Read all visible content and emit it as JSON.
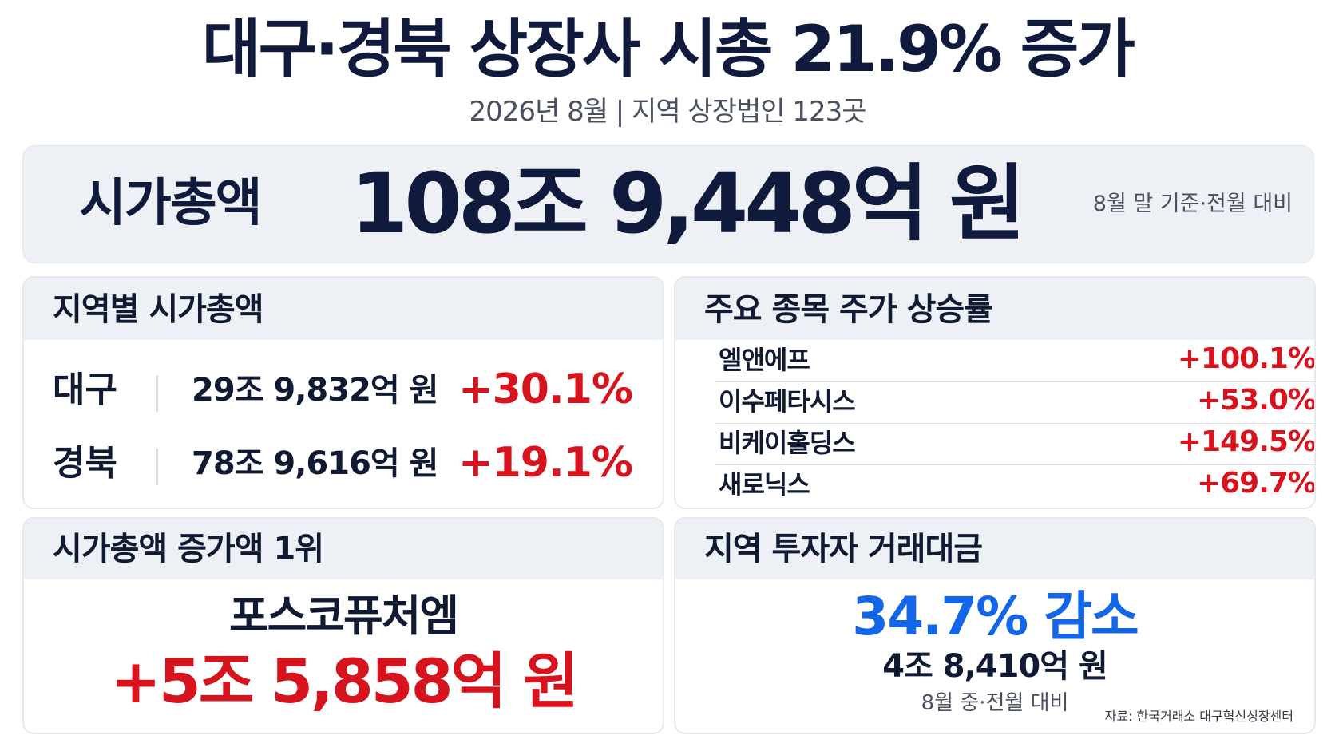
{
  "title": "대구·경북 상장사 시총 21.9% 증가",
  "subtitle": "2026년 8월  |  지역 상장법인 123곳",
  "hero": {
    "label": "시가총액",
    "value": "108조 9,448억 원",
    "note": "8월 말 기준·전월 대비"
  },
  "regions": {
    "header": "지역별 시가총액",
    "rows": [
      {
        "name": "대구",
        "value": "29조 9,832억 원",
        "change": "+30.1%"
      },
      {
        "name": "경북",
        "value": "78조 9,616억 원",
        "change": "+19.1%"
      }
    ]
  },
  "stocks": {
    "header": "주요 종목 주가 상승률",
    "rows": [
      {
        "name": "엘앤에프",
        "change": "+100.1%"
      },
      {
        "name": "이수페타시스",
        "change": "+53.0%"
      },
      {
        "name": "비케이홀딩스",
        "change": "+149.5%"
      },
      {
        "name": "새로닉스",
        "change": "+69.7%"
      }
    ]
  },
  "top_increase": {
    "header": "시가총액 증가액 1위",
    "company": "포스코퓨처엠",
    "amount": "+5조 5,858억 원"
  },
  "trading": {
    "header": "지역 투자자 거래대금",
    "change": "34.7% 감소",
    "amount": "4조 8,410억 원",
    "note": "8월 중·전월 대비"
  },
  "source": "자료: 한국거래소 대구혁신성장센터",
  "colors": {
    "accent_red": "#d7141e",
    "accent_blue": "#1366e8",
    "navy": "#0f1a3d"
  }
}
